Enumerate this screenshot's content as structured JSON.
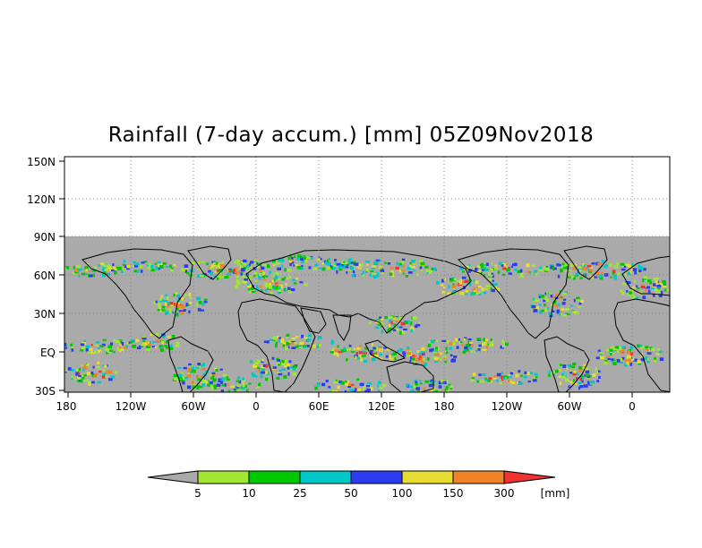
{
  "title": "Rainfall (7-day accum.) [mm] 05Z09Nov2018",
  "map": {
    "lat_labels": [
      "150N",
      "120N",
      "90N",
      "60N",
      "30N",
      "EQ",
      "30S"
    ],
    "lon_labels": [
      "180",
      "120W",
      "60W",
      "0",
      "60E",
      "120E",
      "180",
      "120W",
      "60W",
      "0"
    ],
    "background_color": "#aaaaaa"
  },
  "colorbar": {
    "labels": [
      "5",
      "10",
      "25",
      "50",
      "100",
      "150",
      "300"
    ],
    "unit": "[mm]",
    "colors": [
      "#aaaaaa",
      "#a0e632",
      "#00c800",
      "#00c8c8",
      "#2a3cf0",
      "#e6dc32",
      "#f08228",
      "#f03232"
    ]
  }
}
